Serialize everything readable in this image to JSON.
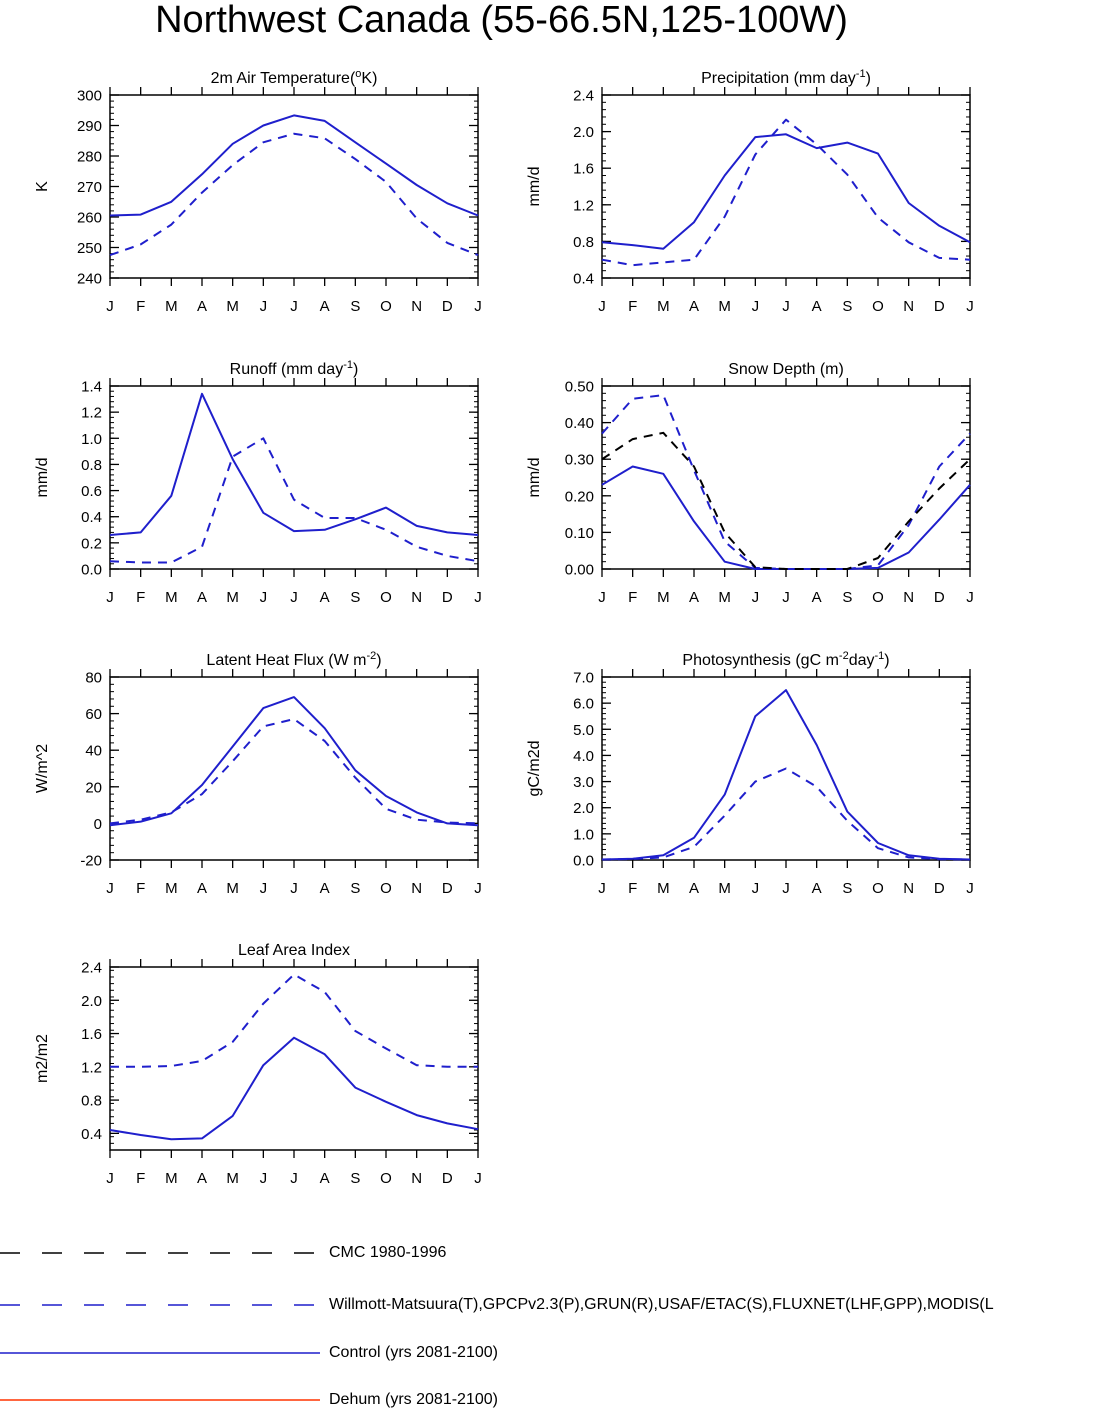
{
  "title": "Northwest Canada (55-66.5N,125-100W)",
  "months": [
    "J",
    "F",
    "M",
    "A",
    "M",
    "J",
    "J",
    "A",
    "S",
    "O",
    "N",
    "D",
    "J"
  ],
  "colors": {
    "control": "#1f1fcc",
    "obs": "#1f1fcc",
    "cmc": "#000000",
    "dehum": "#ff3300"
  },
  "chart_data": [
    {
      "type": "line",
      "title": "2m Air Temperature",
      "title_unit": "(",
      "title_sup": "o",
      "title_tail": "K)",
      "ylabel": "K",
      "ylim": [
        240,
        300
      ],
      "yticks": [
        "240",
        "250",
        "260",
        "270",
        "280",
        "290",
        "300"
      ],
      "x": [
        "J",
        "F",
        "M",
        "A",
        "M",
        "J",
        "J",
        "A",
        "S",
        "O",
        "N",
        "D",
        "J"
      ],
      "series": [
        {
          "name": "Control (yrs 2081-2100)",
          "style": "solid",
          "color": "#1f1fcc",
          "values": [
            260.5,
            260.8,
            265,
            274,
            284,
            290,
            293.3,
            291.5,
            284.5,
            277.5,
            270.5,
            264.5,
            260.5
          ]
        },
        {
          "name": "Willmott-Matsuura(T),GPCPv2.3(P),GRUN(R),USAF/ETAC(S),FLUXNET(LHF,GPP),MODIS(L",
          "style": "dashed",
          "color": "#1f1fcc",
          "values": [
            247.5,
            251,
            257.5,
            268,
            277,
            284.5,
            287.3,
            285.8,
            279,
            271.5,
            259.5,
            251.5,
            247.5
          ]
        }
      ]
    },
    {
      "type": "line",
      "title": "Precipitation (mm day",
      "title_sup": "-1",
      "title_tail": ")",
      "ylabel": "mm/d",
      "ylim": [
        0.4,
        2.4
      ],
      "yticks": [
        "0.4",
        "0.8",
        "1.2",
        "1.6",
        "2.0",
        "2.4"
      ],
      "x": [
        "J",
        "F",
        "M",
        "A",
        "M",
        "J",
        "J",
        "A",
        "S",
        "O",
        "N",
        "D",
        "J"
      ],
      "series": [
        {
          "name": "Control (yrs 2081-2100)",
          "style": "solid",
          "color": "#1f1fcc",
          "values": [
            0.79,
            0.76,
            0.72,
            1.01,
            1.52,
            1.94,
            1.97,
            1.82,
            1.88,
            1.76,
            1.22,
            0.97,
            0.79
          ]
        },
        {
          "name": "Willmott-Matsuura(T),GPCPv2.3(P),GRUN(R),USAF/ETAC(S),FLUXNET(LHF,GPP),MODIS(L",
          "style": "dashed",
          "color": "#1f1fcc",
          "values": [
            0.6,
            0.54,
            0.57,
            0.6,
            1.07,
            1.75,
            2.13,
            1.86,
            1.53,
            1.06,
            0.79,
            0.62,
            0.6
          ]
        }
      ]
    },
    {
      "type": "line",
      "title": "Runoff (mm day",
      "title_sup": "-1",
      "title_tail": ")",
      "ylabel": "mm/d",
      "ylim": [
        0.0,
        1.4
      ],
      "yticks": [
        "0.0",
        "0.2",
        "0.4",
        "0.6",
        "0.8",
        "1.0",
        "1.2",
        "1.4"
      ],
      "x": [
        "J",
        "F",
        "M",
        "A",
        "M",
        "J",
        "J",
        "A",
        "S",
        "O",
        "N",
        "D",
        "J"
      ],
      "series": [
        {
          "name": "Control (yrs 2081-2100)",
          "style": "solid",
          "color": "#1f1fcc",
          "values": [
            0.26,
            0.28,
            0.56,
            1.34,
            0.84,
            0.43,
            0.29,
            0.3,
            0.38,
            0.47,
            0.33,
            0.28,
            0.26
          ]
        },
        {
          "name": "Willmott-Matsuura(T),GPCPv2.3(P),GRUN(R),USAF/ETAC(S),FLUXNET(LHF,GPP),MODIS(L",
          "style": "dashed",
          "color": "#1f1fcc",
          "values": [
            0.06,
            0.05,
            0.05,
            0.17,
            0.86,
            1.0,
            0.53,
            0.39,
            0.39,
            0.3,
            0.17,
            0.1,
            0.06
          ]
        }
      ]
    },
    {
      "type": "line",
      "title": "Snow Depth (m)",
      "title_sup": "",
      "title_tail": "",
      "ylabel": "mm/d",
      "ylim": [
        0.0,
        0.5
      ],
      "yticks": [
        "0.00",
        "0.10",
        "0.20",
        "0.30",
        "0.40",
        "0.50"
      ],
      "x": [
        "J",
        "F",
        "M",
        "A",
        "M",
        "J",
        "J",
        "A",
        "S",
        "O",
        "N",
        "D",
        "J"
      ],
      "series": [
        {
          "name": "Control (yrs 2081-2100)",
          "style": "solid",
          "color": "#1f1fcc",
          "values": [
            0.23,
            0.28,
            0.26,
            0.13,
            0.02,
            0.0,
            0.0,
            0.0,
            0.0,
            0.003,
            0.045,
            0.135,
            0.23
          ]
        },
        {
          "name": "Willmott-Matsuura(T),GPCPv2.3(P),GRUN(R),USAF/ETAC(S),FLUXNET(LHF,GPP),MODIS(L",
          "style": "dashed",
          "color": "#1f1fcc",
          "values": [
            0.37,
            0.465,
            0.475,
            0.27,
            0.075,
            0.003,
            0.0,
            0.0,
            0.0,
            0.01,
            0.12,
            0.28,
            0.37
          ]
        },
        {
          "name": "CMC 1980-1996",
          "style": "dashed",
          "color": "#000000",
          "values": [
            0.3,
            0.355,
            0.372,
            0.28,
            0.1,
            0.005,
            0.0,
            0.0,
            0.0,
            0.03,
            0.13,
            0.22,
            0.3
          ]
        }
      ]
    },
    {
      "type": "line",
      "title": "Latent Heat Flux (W m",
      "title_sup": "-2",
      "title_tail": ")",
      "ylabel": "W/m^2",
      "ylim": [
        -20,
        80
      ],
      "yticks": [
        "-20",
        "0",
        "20",
        "40",
        "60",
        "80"
      ],
      "x": [
        "J",
        "F",
        "M",
        "A",
        "M",
        "J",
        "J",
        "A",
        "S",
        "O",
        "N",
        "D",
        "J"
      ],
      "series": [
        {
          "name": "Control (yrs 2081-2100)",
          "style": "solid",
          "color": "#1f1fcc",
          "values": [
            -1,
            1,
            5.5,
            21,
            42,
            63,
            69,
            52,
            29,
            15,
            6,
            0,
            -1
          ]
        },
        {
          "name": "Willmott-Matsuura(T),GPCPv2.3(P),GRUN(R),USAF/ETAC(S),FLUXNET(LHF,GPP),MODIS(L",
          "style": "dashed",
          "color": "#1f1fcc",
          "values": [
            0,
            2,
            6,
            16,
            34,
            53,
            57,
            45,
            25,
            8,
            2,
            0.5,
            0
          ]
        }
      ]
    },
    {
      "type": "line",
      "title": "Photosynthesis (gC m",
      "title_sup": "-2",
      "title_tail": "day",
      "title_sup2": "-1",
      "title_tail2": ")",
      "ylabel": "gC/m2d",
      "ylim": [
        0.0,
        7.0
      ],
      "yticks": [
        "0.0",
        "1.0",
        "2.0",
        "3.0",
        "4.0",
        "5.0",
        "6.0",
        "7.0"
      ],
      "x": [
        "J",
        "F",
        "M",
        "A",
        "M",
        "J",
        "J",
        "A",
        "S",
        "O",
        "N",
        "D",
        "J"
      ],
      "series": [
        {
          "name": "Control (yrs 2081-2100)",
          "style": "solid",
          "color": "#1f1fcc",
          "values": [
            0.02,
            0.05,
            0.18,
            0.85,
            2.5,
            5.5,
            6.5,
            4.4,
            1.85,
            0.65,
            0.18,
            0.05,
            0.02
          ]
        },
        {
          "name": "Willmott-Matsuura(T),GPCPv2.3(P),GRUN(R),USAF/ETAC(S),FLUXNET(LHF,GPP),MODIS(L",
          "style": "dashed",
          "color": "#1f1fcc",
          "values": [
            0.02,
            0.04,
            0.1,
            0.5,
            1.7,
            3.0,
            3.5,
            2.8,
            1.5,
            0.45,
            0.1,
            0.03,
            0.02
          ]
        }
      ]
    },
    {
      "type": "line",
      "title": "Leaf Area Index",
      "title_sup": "",
      "title_tail": "",
      "ylabel": "m2/m2",
      "ylim": [
        0.2,
        2.4
      ],
      "yticks": [
        "0.4",
        "0.8",
        "1.2",
        "1.6",
        "2.0",
        "2.4"
      ],
      "x": [
        "J",
        "F",
        "M",
        "A",
        "M",
        "J",
        "J",
        "A",
        "S",
        "O",
        "N",
        "D",
        "J"
      ],
      "series": [
        {
          "name": "Control (yrs 2081-2100)",
          "style": "solid",
          "color": "#1f1fcc",
          "values": [
            0.44,
            0.38,
            0.33,
            0.34,
            0.61,
            1.22,
            1.55,
            1.35,
            0.95,
            0.78,
            0.62,
            0.52,
            0.45
          ]
        },
        {
          "name": "Willmott-Matsuura(T),GPCPv2.3(P),GRUN(R),USAF/ETAC(S),FLUXNET(LHF,GPP),MODIS(L",
          "style": "dashed",
          "color": "#1f1fcc",
          "values": [
            1.2,
            1.2,
            1.21,
            1.27,
            1.5,
            1.96,
            2.31,
            2.1,
            1.63,
            1.42,
            1.22,
            1.2,
            1.2
          ]
        }
      ]
    }
  ],
  "legend": [
    {
      "label": "CMC 1980-1996",
      "style": "dashed",
      "color": "#000000"
    },
    {
      "label": "Willmott-Matsuura(T),GPCPv2.3(P),GRUN(R),USAF/ETAC(S),FLUXNET(LHF,GPP),MODIS(L",
      "style": "dashed",
      "color": "#1f1fcc"
    },
    {
      "label": "Control (yrs 2081-2100)",
      "style": "solid",
      "color": "#1f1fcc"
    },
    {
      "label": "Dehum (yrs 2081-2100)",
      "style": "solid",
      "color": "#ff3300"
    }
  ]
}
